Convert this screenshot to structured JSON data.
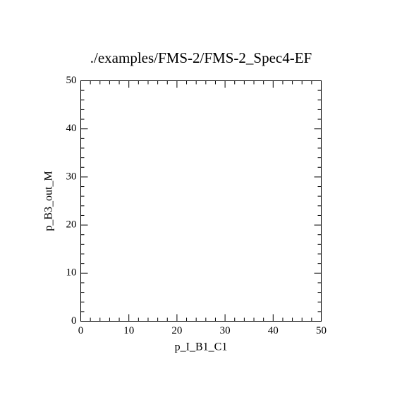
{
  "chart_data": {
    "type": "scatter",
    "title": "./examples/FMS-2/FMS-2_Spec4-EF",
    "x_label": "p_I_B1_C1",
    "y_label": "p_B3_out_M",
    "xlim": [
      0,
      50
    ],
    "ylim": [
      0,
      50
    ],
    "xticks": [
      0,
      10,
      20,
      30,
      40,
      50
    ],
    "yticks": [
      0,
      10,
      20,
      30,
      40,
      50
    ]
  }
}
